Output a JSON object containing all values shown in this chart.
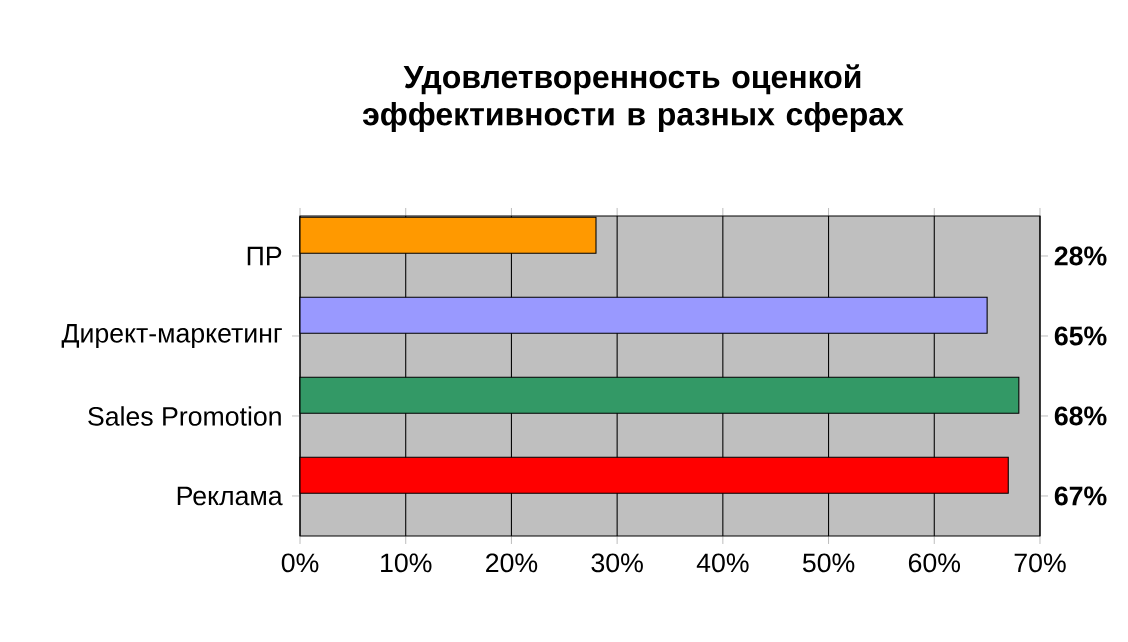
{
  "chart_data": {
    "type": "bar",
    "orientation": "horizontal",
    "title": "Удовлетворенность оценкой эффективности в разных сферах",
    "categories": [
      "ПР",
      "Директ-маркетинг",
      "Sales Promotion",
      "Реклама"
    ],
    "values": [
      28,
      65,
      68,
      67
    ],
    "colors": [
      "#ff9900",
      "#9999ff",
      "#339966",
      "#ff0000"
    ],
    "value_labels": [
      "28%",
      "65%",
      "68%",
      "67%"
    ],
    "xlim": [
      0,
      70
    ],
    "xticks": [
      {
        "value": 0,
        "label": "0%"
      },
      {
        "value": 10,
        "label": "10%"
      },
      {
        "value": 20,
        "label": "20%"
      },
      {
        "value": 30,
        "label": "30%"
      },
      {
        "value": 40,
        "label": "40%"
      },
      {
        "value": 50,
        "label": "50%"
      },
      {
        "value": 60,
        "label": "60%"
      },
      {
        "value": 70,
        "label": "70%"
      }
    ],
    "grid": "x"
  }
}
